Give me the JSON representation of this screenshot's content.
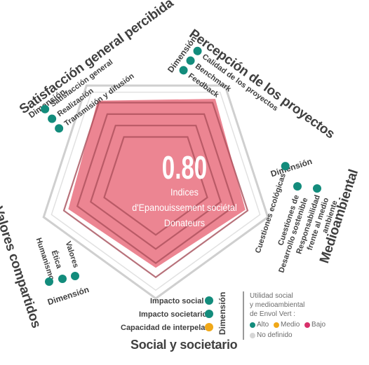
{
  "colors": {
    "teal": "#138c7c",
    "amber": "#f0a818",
    "pink": "#d8306a",
    "grey": "#d6d6d6",
    "fill": "#e9707f",
    "web": "#a94e5a"
  },
  "score": {
    "value": "0.80",
    "line1": "Indices",
    "line2": "d'Epanouissement sociétal",
    "line3": "Donateurs"
  },
  "dimension_label": "Dimensión",
  "axes": {
    "perception": {
      "title": "Percepción de los proyectos",
      "items": [
        {
          "label": "Calidad de los proyectos",
          "level": "alto"
        },
        {
          "label": "Benchmark",
          "level": "alto"
        },
        {
          "label": "Feedback",
          "level": "alto"
        }
      ]
    },
    "environmental": {
      "title": "Medioambiental",
      "items": [
        {
          "label": "Cuestiones ecológicas",
          "level": "alto"
        },
        {
          "label": "Cuestiones de Desarrollo sostenible",
          "level": "alto"
        },
        {
          "label": "Responsabilidad frente al medio ambiente",
          "level": "alto"
        }
      ]
    },
    "social": {
      "title": "Social y societario",
      "items": [
        {
          "label": "Impacto social",
          "level": "alto"
        },
        {
          "label": "Impacto societario",
          "level": "alto"
        },
        {
          "label": "Capacidad de interpelar",
          "level": "medio"
        }
      ]
    },
    "values": {
      "title": "Valores compartidos",
      "items": [
        {
          "label": "Humanismo",
          "level": "alto"
        },
        {
          "label": "Ética",
          "level": "alto"
        },
        {
          "label": "Valores",
          "level": "alto"
        }
      ]
    },
    "satisfaction": {
      "title": "Satisfacción general percibida",
      "items": [
        {
          "label": "Satisfacción general",
          "level": "alto"
        },
        {
          "label": "Realización",
          "level": "alto"
        },
        {
          "label": "Transmisión y difusión",
          "level": "alto"
        }
      ]
    }
  },
  "radar_values": {
    "satisfaction": 0.84,
    "perception": 0.86,
    "environmental": 0.8,
    "social": 0.74,
    "values": 0.78
  },
  "legend": {
    "title_line1": "Utilidad social",
    "title_line2": "y medioambiental",
    "title_line3": "de Envol Vert :",
    "alto": "Alto",
    "medio": "Medio",
    "bajo": "Bajo",
    "undefined": "No definido"
  }
}
